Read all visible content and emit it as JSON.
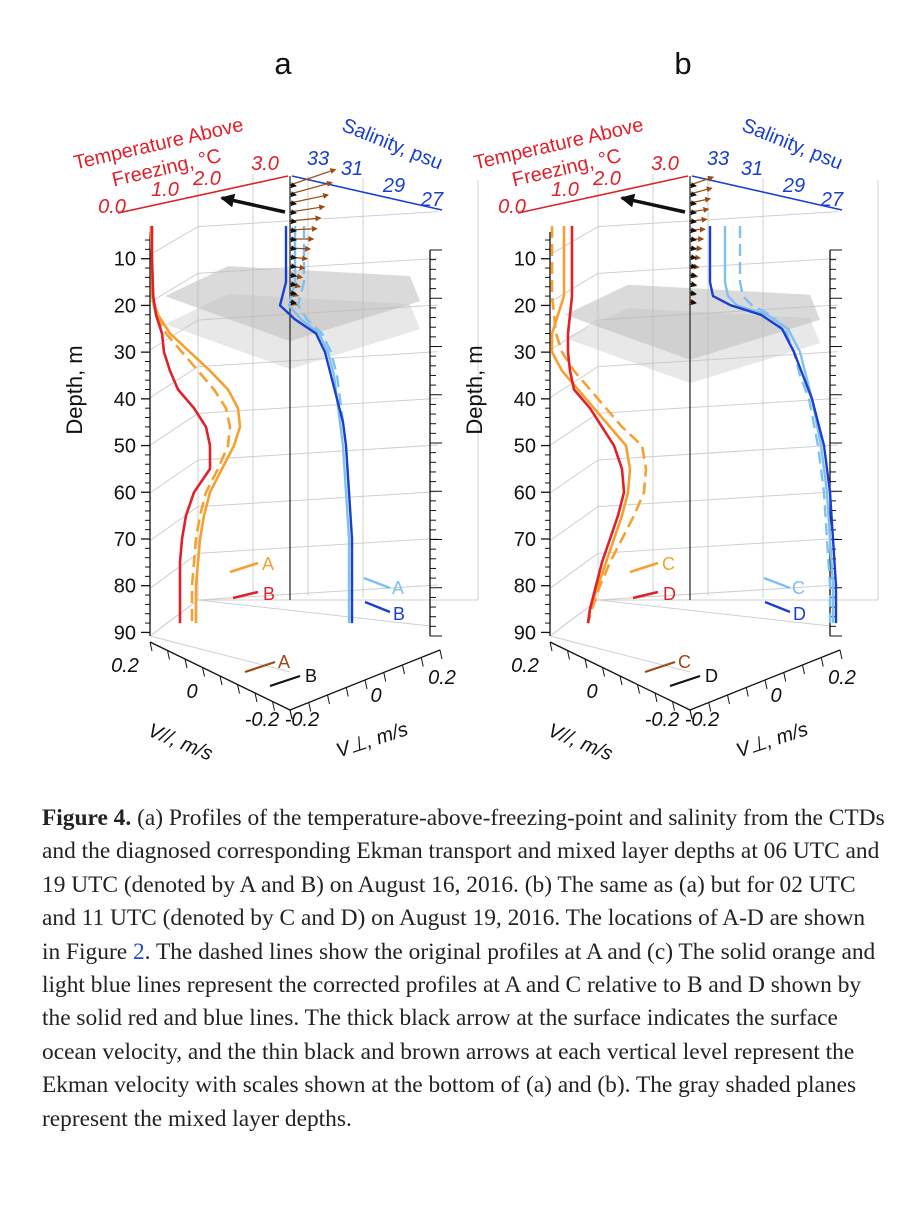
{
  "figure": {
    "panels": [
      {
        "letter": "a",
        "temp_axis_title_line1": "Temperature Above",
        "temp_axis_title_line2": "Freezing, °C",
        "temp_ticks": [
          "0.0",
          "1.0",
          "2.0",
          "3.0"
        ],
        "sal_axis_title": "Salinity, psu",
        "sal_ticks": [
          "33",
          "31",
          "29",
          "27"
        ],
        "depth_label": "Depth, m",
        "depth_ticks": [
          "10",
          "20",
          "30",
          "40",
          "50",
          "60",
          "70",
          "80",
          "90"
        ],
        "vpar_ticks": [
          "0.2",
          "0",
          "-0.2"
        ],
        "vpar_label": "V//, m/s",
        "vperp_ticks": [
          "-0.2",
          "0",
          "0.2"
        ],
        "vperp_label": "V⊥, m/s",
        "legend_left": [
          "A",
          "B"
        ],
        "legend_right": [
          "A",
          "B"
        ],
        "legend_ekman": [
          "A",
          "B"
        ]
      },
      {
        "letter": "b",
        "temp_axis_title_line1": "Temperature Above",
        "temp_axis_title_line2": "Freezing, °C",
        "temp_ticks": [
          "0.0",
          "1.0",
          "2.0",
          "3.0"
        ],
        "sal_axis_title": "Salinity, psu",
        "sal_ticks": [
          "33",
          "31",
          "29",
          "27"
        ],
        "depth_label": "Depth, m",
        "depth_ticks": [
          "10",
          "20",
          "30",
          "40",
          "50",
          "60",
          "70",
          "80",
          "90"
        ],
        "vpar_ticks": [
          "0.2",
          "0",
          "-0.2"
        ],
        "vpar_label": "V//, m/s",
        "vperp_ticks": [
          "-0.2",
          "0",
          "0.2"
        ],
        "vperp_label": "V⊥, m/s",
        "legend_left": [
          "C",
          "D"
        ],
        "legend_right": [
          "C",
          "D"
        ],
        "legend_ekman": [
          "C",
          "D"
        ]
      }
    ]
  },
  "colors": {
    "temp_axis": "#e0202a",
    "sal_axis": "#1a3fd0",
    "orange": "#f5a030",
    "red": "#e0202a",
    "blue": "#1a3fd0",
    "light_blue": "#7ec0ee",
    "brown": "#9c4a12",
    "mld_plane": "#bcbcbc"
  },
  "chart_data": [
    {
      "type": "line",
      "panel": "a",
      "y_axis": "Depth (m)",
      "ylim": [
        0,
        90
      ],
      "temperature_xlim": [
        0,
        3
      ],
      "salinity_xlim": [
        33,
        27
      ],
      "temperature_series": [
        {
          "name": "A",
          "style": "solid",
          "color": "orange",
          "depth": [
            3,
            10,
            18,
            22,
            26,
            30,
            34,
            38,
            42,
            46,
            50,
            55,
            60,
            65,
            70,
            75,
            80,
            85,
            88
          ],
          "values": [
            0.02,
            0.05,
            0.05,
            0.2,
            0.5,
            1.0,
            1.5,
            1.95,
            2.2,
            2.25,
            2.1,
            1.8,
            1.5,
            1.35,
            1.25,
            1.2,
            1.15,
            1.15,
            1.15
          ]
        },
        {
          "name": "A",
          "style": "dashed",
          "color": "orange",
          "depth": [
            3,
            10,
            18,
            22,
            26,
            30,
            34,
            38,
            42,
            46,
            50,
            55,
            60,
            65,
            70,
            75,
            80,
            85,
            88
          ],
          "values": [
            0.02,
            0.05,
            0.05,
            0.15,
            0.4,
            0.8,
            1.2,
            1.6,
            1.9,
            2.0,
            1.95,
            1.7,
            1.4,
            1.25,
            1.15,
            1.1,
            1.05,
            1.05,
            1.05
          ]
        },
        {
          "name": "B",
          "style": "solid",
          "color": "red",
          "depth": [
            3,
            10,
            18,
            22,
            26,
            30,
            34,
            38,
            42,
            46,
            50,
            55,
            60,
            65,
            70,
            75,
            80,
            85,
            88
          ],
          "values": [
            0.05,
            0.05,
            0.08,
            0.15,
            0.3,
            0.35,
            0.5,
            0.7,
            1.1,
            1.4,
            1.5,
            1.5,
            1.1,
            0.9,
            0.8,
            0.75,
            0.75,
            0.75,
            0.75
          ]
        }
      ],
      "salinity_series": [
        {
          "name": "A",
          "style": "solid",
          "color": "light_blue",
          "depth": [
            3,
            10,
            15,
            20,
            23,
            26,
            30,
            35,
            40,
            45,
            50,
            60,
            70,
            80,
            88
          ],
          "values": [
            30.5,
            30.5,
            30.5,
            30.3,
            30.7,
            31.3,
            31.6,
            31.8,
            31.9,
            32.0,
            32.1,
            32.2,
            32.3,
            32.3,
            32.3
          ]
        },
        {
          "name": "A",
          "style": "dashed",
          "color": "light_blue",
          "depth": [
            3,
            10,
            15,
            20,
            23,
            26,
            30,
            35,
            40,
            45,
            50,
            60,
            70,
            80,
            88
          ],
          "values": [
            30.8,
            30.8,
            30.8,
            30.6,
            30.9,
            31.4,
            31.7,
            31.9,
            32.0,
            32.1,
            32.2,
            32.3,
            32.4,
            32.4,
            32.4
          ]
        },
        {
          "name": "B",
          "style": "solid",
          "color": "blue",
          "depth": [
            3,
            10,
            15,
            20,
            23,
            26,
            30,
            35,
            40,
            45,
            50,
            60,
            70,
            80,
            88
          ],
          "values": [
            30.2,
            30.2,
            30.2,
            30.0,
            30.5,
            31.2,
            31.5,
            31.7,
            31.9,
            32.1,
            32.2,
            32.3,
            32.4,
            32.4,
            32.4
          ]
        }
      ]
    },
    {
      "type": "line",
      "panel": "b",
      "y_axis": "Depth (m)",
      "ylim": [
        0,
        90
      ],
      "temperature_xlim": [
        0,
        3
      ],
      "salinity_xlim": [
        33,
        27
      ],
      "temperature_series": [
        {
          "name": "C",
          "style": "solid",
          "color": "orange",
          "depth": [
            3,
            10,
            18,
            22,
            26,
            30,
            34,
            38,
            42,
            46,
            50,
            55,
            60,
            65,
            70,
            75,
            80,
            85,
            88
          ],
          "values": [
            0.35,
            0.35,
            0.35,
            0.2,
            0.05,
            0.05,
            0.3,
            0.7,
            1.1,
            1.5,
            1.9,
            2.0,
            1.95,
            1.8,
            1.6,
            1.4,
            1.2,
            1.0,
            0.95
          ]
        },
        {
          "name": "C",
          "style": "dashed",
          "color": "orange",
          "depth": [
            3,
            10,
            18,
            22,
            26,
            30,
            34,
            38,
            42,
            46,
            50,
            55,
            60,
            65,
            70,
            75,
            80,
            85,
            88
          ],
          "values": [
            0.05,
            0.05,
            0.05,
            0.1,
            0.15,
            0.3,
            0.6,
            1.0,
            1.4,
            1.8,
            2.3,
            2.4,
            2.35,
            2.1,
            1.8,
            1.5,
            1.25,
            1.05,
            0.95
          ]
        },
        {
          "name": "D",
          "style": "solid",
          "color": "red",
          "depth": [
            3,
            10,
            18,
            22,
            26,
            30,
            34,
            38,
            42,
            46,
            50,
            55,
            60,
            65,
            70,
            75,
            80,
            85,
            88
          ],
          "values": [
            0.55,
            0.55,
            0.55,
            0.5,
            0.45,
            0.45,
            0.5,
            0.6,
            1.0,
            1.3,
            1.6,
            1.8,
            1.85,
            1.7,
            1.5,
            1.3,
            1.15,
            1.0,
            0.95
          ]
        }
      ],
      "salinity_series": [
        {
          "name": "C",
          "style": "solid",
          "color": "light_blue",
          "depth": [
            3,
            10,
            15,
            18,
            20,
            22,
            25,
            30,
            35,
            40,
            50,
            60,
            70,
            80,
            88
          ],
          "values": [
            28.0,
            28.0,
            28.0,
            28.1,
            28.4,
            29.4,
            30.1,
            30.5,
            30.7,
            30.9,
            31.2,
            31.4,
            31.5,
            31.6,
            31.6
          ]
        },
        {
          "name": "C",
          "style": "dashed",
          "color": "light_blue",
          "depth": [
            3,
            10,
            15,
            18,
            20,
            22,
            25,
            30,
            35,
            40,
            50,
            60,
            70,
            80,
            88
          ],
          "values": [
            28.5,
            28.5,
            28.5,
            28.6,
            28.9,
            29.5,
            30.0,
            30.3,
            30.5,
            30.8,
            31.1,
            31.3,
            31.4,
            31.5,
            31.5
          ]
        },
        {
          "name": "D",
          "style": "solid",
          "color": "blue",
          "depth": [
            3,
            10,
            15,
            18,
            20,
            22,
            25,
            30,
            35,
            40,
            50,
            60,
            70,
            80,
            88
          ],
          "values": [
            27.5,
            27.5,
            27.5,
            27.6,
            28.2,
            29.2,
            29.9,
            30.3,
            30.6,
            30.9,
            31.3,
            31.5,
            31.6,
            31.7,
            31.7
          ]
        }
      ]
    }
  ],
  "caption": {
    "label": "Figure 4.",
    "text_1": " (a) Profiles of the temperature-above-freezing-point and salinity from the CTDs and the diagnosed corresponding Ekman transport and mixed layer depths at 06 UTC and 19 UTC (denoted by A and B) on August 16, 2016. (b) The same as (a) but for 02 UTC and 11 UTC (denoted by C and D) on August 19, 2016. The locations of A-D are shown in Figure ",
    "ref": "2",
    "text_2": ". The dashed lines show the original profiles at A and (c) The solid orange and light blue lines represent the corrected profiles at A and C relative to B and D shown by the solid red and blue lines. The thick black arrow at the surface indicates the surface ocean velocity, and the thin black and brown arrows at each vertical level represent the Ekman velocity with scales shown at the bottom of (a) and (b). The gray shaded planes represent the mixed layer depths."
  }
}
